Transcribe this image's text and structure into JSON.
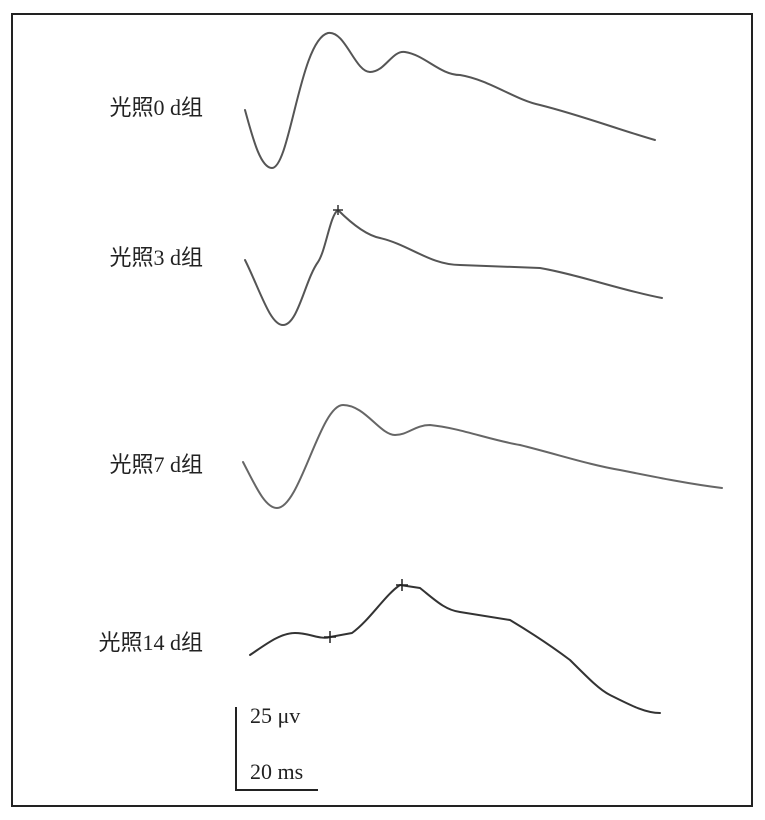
{
  "traces": [
    {
      "label": "光照0 d组"
    },
    {
      "label": "光照3 d组"
    },
    {
      "label": "光照7 d组"
    },
    {
      "label": "光照14 d组"
    }
  ],
  "scale_bar": {
    "amplitude": "25 μv",
    "time": "20 ms"
  }
}
